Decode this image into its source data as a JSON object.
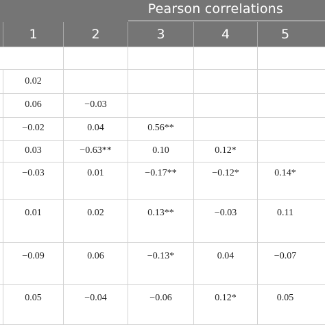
{
  "header": {
    "group_title": "Pearson correlations",
    "columns": [
      "1",
      "2",
      "3",
      "4",
      "5"
    ]
  },
  "rows": [
    [
      "",
      "",
      "",
      "",
      ""
    ],
    [
      "0.02",
      "",
      "",
      "",
      ""
    ],
    [
      "0.06",
      "−0.03",
      "",
      "",
      ""
    ],
    [
      "−0.02",
      "0.04",
      "0.56**",
      "",
      ""
    ],
    [
      "0.03",
      "−0.63**",
      "0.10",
      "0.12*",
      ""
    ],
    [
      "−0.03",
      "0.01",
      "−0.17**",
      "−0.12*",
      "0.14*"
    ],
    [
      "0.01",
      "0.02",
      "0.13**",
      "−0.03",
      "0.11"
    ],
    [
      "−0.09",
      "0.06",
      "−0.13*",
      "0.04",
      "−0.07"
    ],
    [
      "0.05",
      "−0.04",
      "−0.06",
      "0.12*",
      "0.05"
    ]
  ]
}
